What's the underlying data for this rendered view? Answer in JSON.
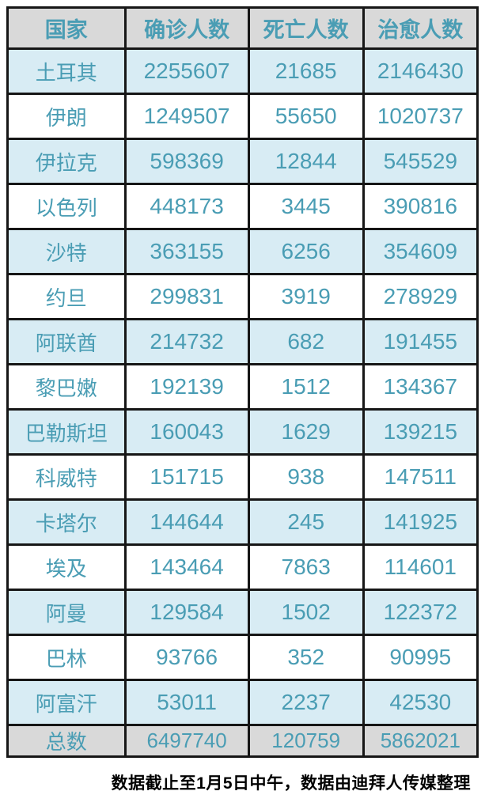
{
  "chart_data": {
    "type": "table",
    "columns": [
      "国家",
      "确诊人数",
      "死亡人数",
      "治愈人数"
    ],
    "rows": [
      [
        "土耳其",
        2255607,
        21685,
        2146430
      ],
      [
        "伊朗",
        1249507,
        55650,
        1020737
      ],
      [
        "伊拉克",
        598369,
        12844,
        545529
      ],
      [
        "以色列",
        448173,
        3445,
        390816
      ],
      [
        "沙特",
        363155,
        6256,
        354609
      ],
      [
        "约旦",
        299831,
        3919,
        278929
      ],
      [
        "阿联酋",
        214732,
        682,
        191455
      ],
      [
        "黎巴嫩",
        192139,
        1512,
        134367
      ],
      [
        "巴勒斯坦",
        160043,
        1629,
        139215
      ],
      [
        "科威特",
        151715,
        938,
        147511
      ],
      [
        "卡塔尔",
        144644,
        245,
        141925
      ],
      [
        "埃及",
        143464,
        7863,
        114601
      ],
      [
        "阿曼",
        129584,
        1502,
        122372
      ],
      [
        "巴林",
        93766,
        352,
        90995
      ],
      [
        "阿富汗",
        53011,
        2237,
        42530
      ]
    ],
    "total_row": [
      "总数",
      6497740,
      120759,
      5862021
    ],
    "note": "数据截止至1月5日中午，数据由迪拜人传媒整理",
    "layout": {
      "row_striping": "odd rows light blue, even rows white",
      "header_and_total_bg": "gray"
    }
  },
  "colors": {
    "accent_text": "#4a9db4",
    "header_bg": "#d9d9d9",
    "total_bg": "#d9d9d9",
    "alt_row_bg": "#d8ecf4",
    "row_bg": "#ffffff",
    "border": "#161616",
    "note_text": "#000000"
  }
}
